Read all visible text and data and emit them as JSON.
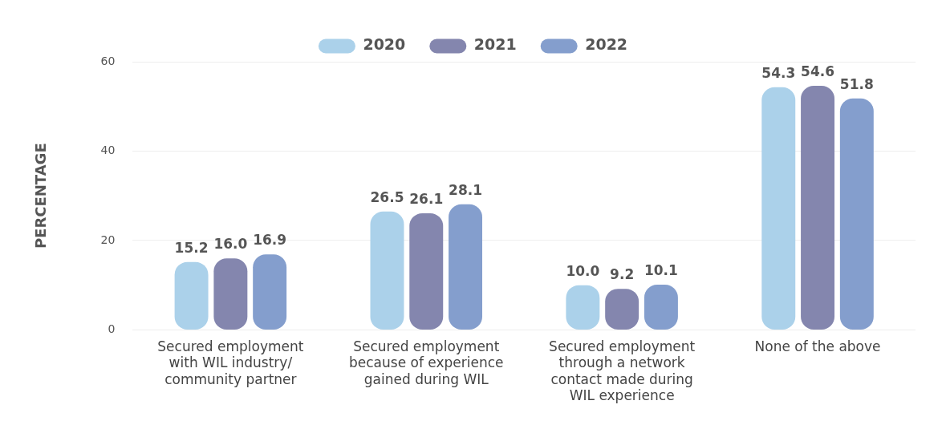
{
  "chart_data": {
    "type": "bar",
    "ylabel": "PERCENTAGE",
    "categories": [
      "Secured employment with WIL industry/ community partner",
      "Secured employment because of experience gained during WIL",
      "Secured employment through a network contact made during WIL experience",
      "None of the above"
    ],
    "series": [
      {
        "name": "2020",
        "color": "#abd1ea",
        "values": [
          15.2,
          26.5,
          10.0,
          54.3
        ],
        "value_labels": [
          "15.2",
          "26.5",
          "10.0",
          "54.3"
        ]
      },
      {
        "name": "2021",
        "color": "#8486ae",
        "values": [
          16.0,
          26.1,
          9.2,
          54.6
        ],
        "value_labels": [
          "16.0",
          "26.1",
          "9.2",
          "54.6"
        ]
      },
      {
        "name": "2022",
        "color": "#849ecd",
        "values": [
          16.9,
          28.1,
          10.1,
          51.8
        ],
        "value_labels": [
          "16.9",
          "28.1",
          "10.1",
          "51.8"
        ]
      }
    ],
    "ylim": [
      0,
      60
    ],
    "yticks": [
      0,
      20,
      40,
      60
    ],
    "grid": "y",
    "legend": "top"
  }
}
